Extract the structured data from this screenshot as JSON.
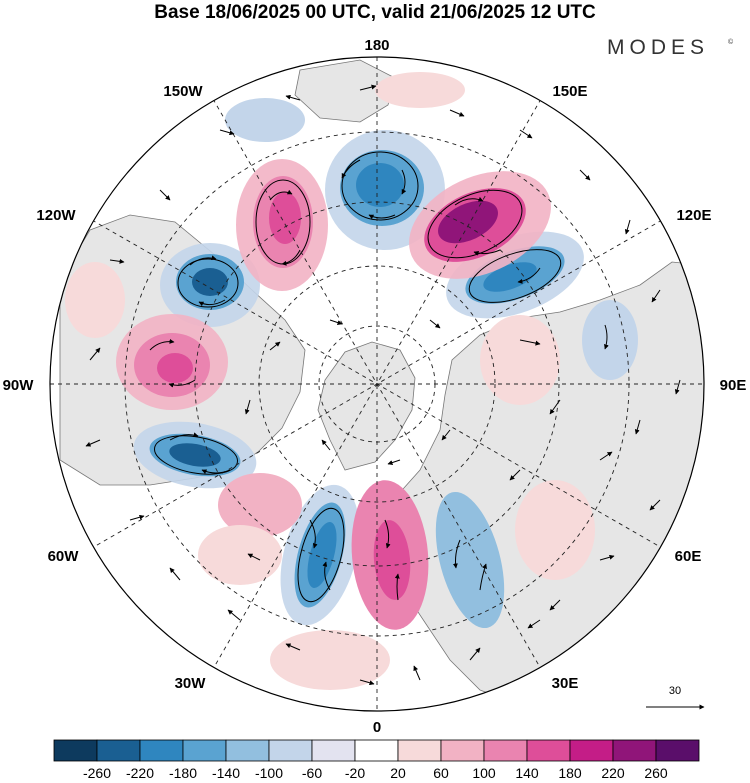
{
  "header": {
    "title": "Base 18/06/2025 00 UTC, valid 21/06/2025 12 UTC",
    "brand": "MODES",
    "brand_mark": "©"
  },
  "map": {
    "projection": "north-polar-stereographic",
    "longitude_labels": {
      "180": "180",
      "150W": "150W",
      "150E": "150E",
      "120W": "120W",
      "120E": "120E",
      "90W": "90W",
      "90E": "90E",
      "60W": "60W",
      "60E": "60E",
      "30W": "30W",
      "30E": "30E",
      "0": "0"
    },
    "vector_scale": {
      "label": "30"
    },
    "anomaly_centres": [
      {
        "sign": "positive",
        "strength": 2
      },
      {
        "sign": "negative",
        "strength": 2
      },
      {
        "sign": "positive",
        "strength": 3
      },
      {
        "sign": "negative",
        "strength": 2
      },
      {
        "sign": "negative",
        "strength": 2
      },
      {
        "sign": "positive",
        "strength": 2
      },
      {
        "sign": "negative",
        "strength": 2
      },
      {
        "sign": "positive",
        "strength": 1
      },
      {
        "sign": "negative",
        "strength": 2
      },
      {
        "sign": "positive",
        "strength": 2
      },
      {
        "sign": "negative",
        "strength": 1
      },
      {
        "sign": "positive",
        "strength": 1
      },
      {
        "sign": "negative",
        "strength": 1
      }
    ]
  },
  "colorbar": {
    "colors": [
      "#0d3a5e",
      "#1a5f92",
      "#2f86bf",
      "#5aa3d1",
      "#92bfdf",
      "#c3d5ea",
      "#e3e3f0",
      "#ffffff",
      "#f7dada",
      "#f2b2c4",
      "#ea84b0",
      "#de4e99",
      "#c41d87",
      "#901579",
      "#5a0e6a"
    ],
    "labels": [
      "-260",
      "-220",
      "-180",
      "-140",
      "-100",
      "-60",
      "-20",
      "20",
      "60",
      "100",
      "140",
      "180",
      "220",
      "260"
    ]
  }
}
